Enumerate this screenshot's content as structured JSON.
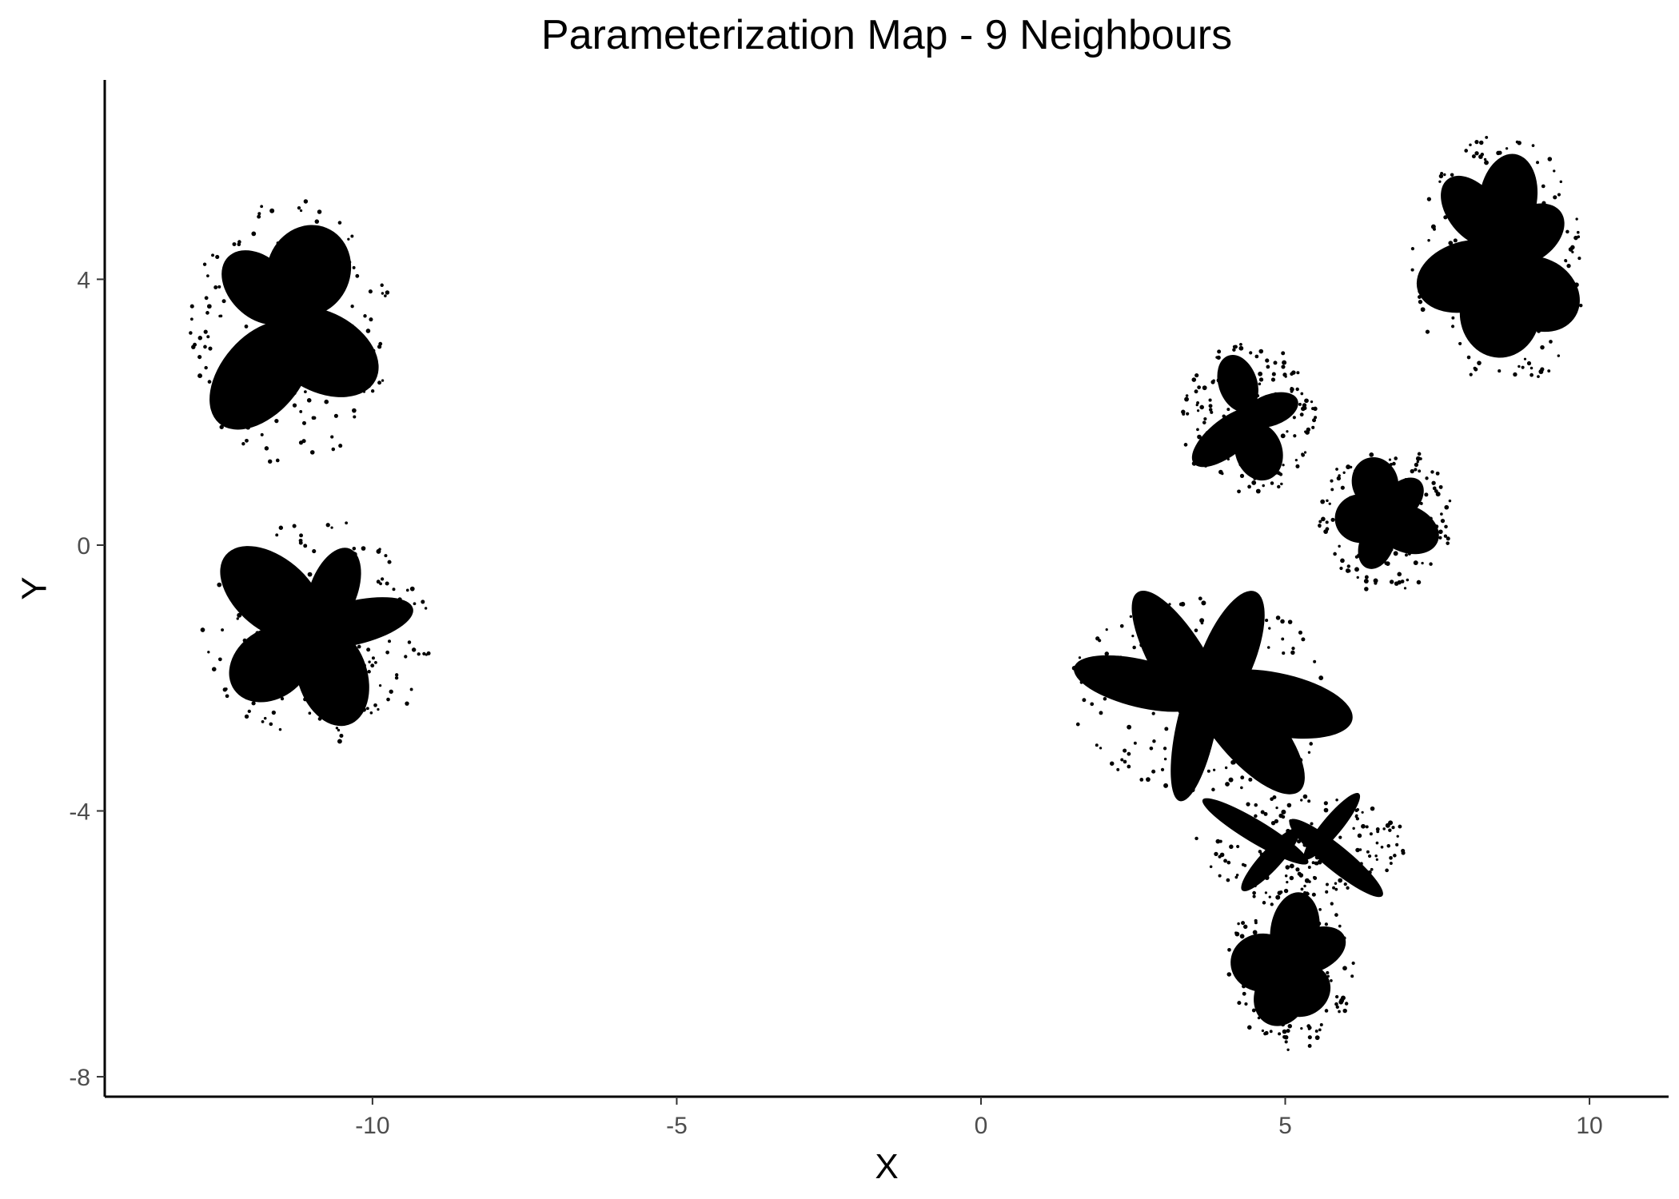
{
  "chart_data": {
    "type": "scatter",
    "title": "Parameterization Map - 9 Neighbours",
    "xlabel": "X",
    "ylabel": "Y",
    "xlim": [
      -14.4,
      11.3
    ],
    "ylim": [
      -8.3,
      7.0
    ],
    "x_ticks": [
      -10,
      -5,
      0,
      5,
      10
    ],
    "y_ticks": [
      -8,
      -4,
      0,
      4
    ],
    "grid": false,
    "legend": "none",
    "marker_color": "#000000",
    "clusters": [
      {
        "name": "upper-left leaf group",
        "x_range": [
          -13.1,
          -9.6
        ],
        "y_range": [
          1.1,
          5.4
        ]
      },
      {
        "name": "middle-left leaf group",
        "x_range": [
          -12.9,
          -8.9
        ],
        "y_range": [
          -3.1,
          0.5
        ]
      },
      {
        "name": "top-right leaf group",
        "x_range": [
          7.0,
          10.1
        ],
        "y_range": [
          2.2,
          6.3
        ]
      },
      {
        "name": "upper-middle-right leaf group",
        "x_range": [
          3.2,
          5.6
        ],
        "y_range": [
          0.7,
          3.1
        ]
      },
      {
        "name": "flower cluster",
        "x_range": [
          5.5,
          7.8
        ],
        "y_range": [
          -0.8,
          1.6
        ]
      },
      {
        "name": "middle-right leaf group",
        "x_range": [
          1.3,
          6.1
        ],
        "y_range": [
          -3.8,
          -0.7
        ]
      },
      {
        "name": "lower-right leaf group",
        "x_range": [
          3.4,
          7.1
        ],
        "y_range": [
          -5.3,
          -3.7
        ]
      },
      {
        "name": "bottom-right leaf group",
        "x_range": [
          4.0,
          6.2
        ],
        "y_range": [
          -7.7,
          -4.9
        ]
      }
    ]
  }
}
